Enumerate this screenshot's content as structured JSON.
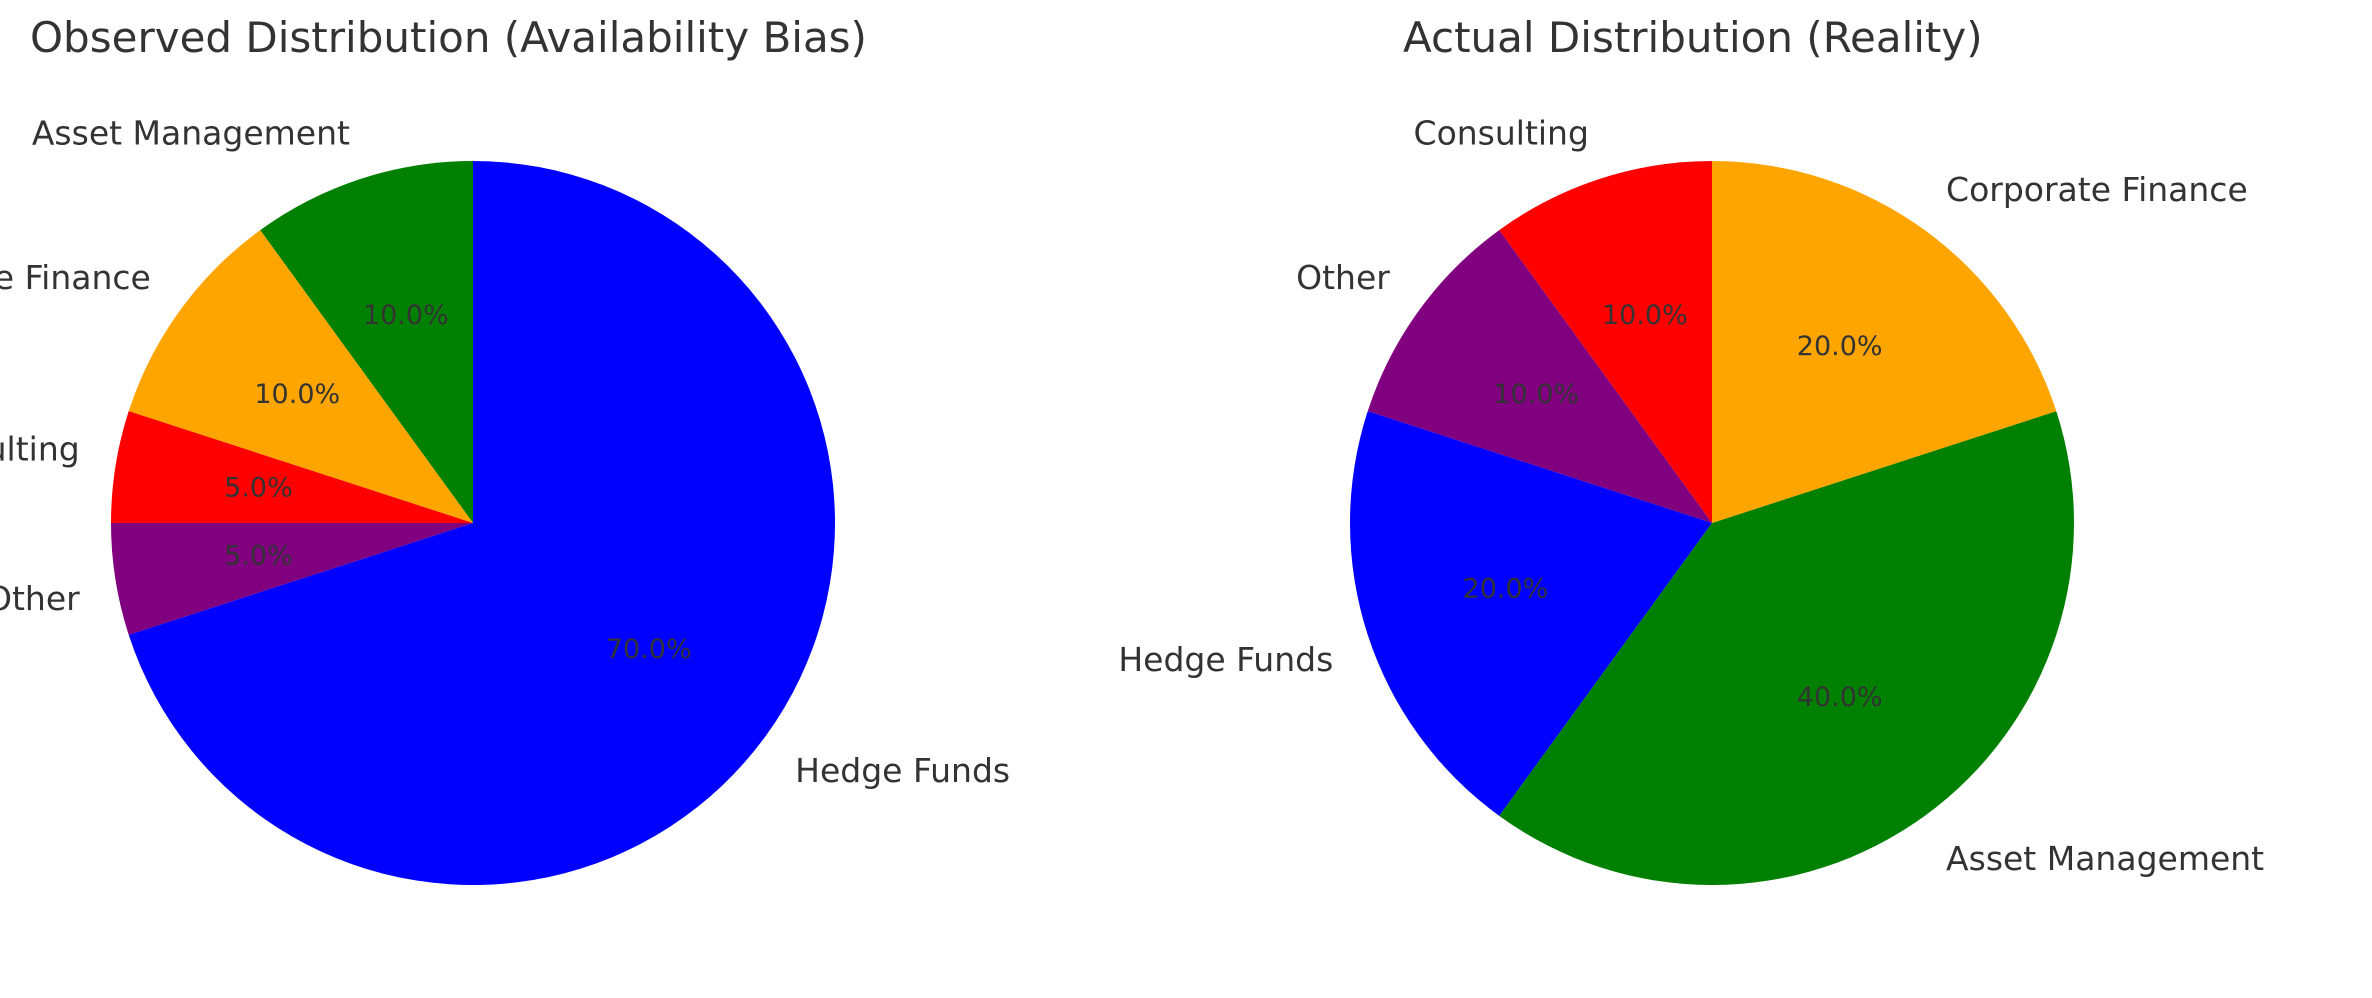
{
  "chart_data": [
    {
      "type": "pie",
      "title": "Observed Distribution (Availability Bias)",
      "start_angle": 90,
      "direction": "counterclockwise",
      "categories": [
        "Asset Management",
        "Corporate Finance",
        "Consulting",
        "Other",
        "Hedge Funds"
      ],
      "values": [
        10.0,
        10.0,
        5.0,
        5.0,
        70.0
      ],
      "percent_labels": [
        "10.0%",
        "10.0%",
        "5.0%",
        "5.0%",
        "70.0%"
      ],
      "colors": [
        "#008000",
        "#FFA500",
        "#FF0000",
        "#800080",
        "#0000FF"
      ]
    },
    {
      "type": "pie",
      "title": "Actual Distribution (Reality)",
      "start_angle": 90,
      "direction": "counterclockwise",
      "categories": [
        "Consulting",
        "Other",
        "Hedge Funds",
        "Asset Management",
        "Corporate Finance"
      ],
      "values": [
        10.0,
        10.0,
        20.0,
        40.0,
        20.0
      ],
      "percent_labels": [
        "10.0%",
        "10.0%",
        "20.0%",
        "40.0%",
        "20.0%"
      ],
      "colors": [
        "#FF0000",
        "#800080",
        "#0000FF",
        "#008000",
        "#FFA500"
      ]
    }
  ]
}
